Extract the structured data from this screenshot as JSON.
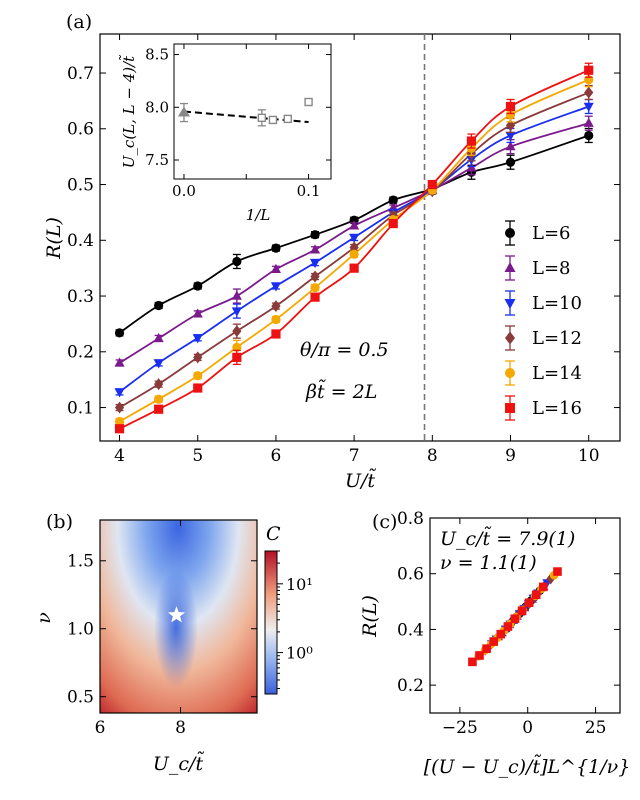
{
  "chart_data": [
    {
      "id": "a",
      "panel_label": "(a)",
      "type": "line",
      "xlabel": "U/t̃",
      "ylabel": "R(L)",
      "xlim": [
        3.75,
        10.4
      ],
      "ylim": [
        0.04,
        0.77
      ],
      "xticks": [
        4,
        5,
        6,
        7,
        8,
        9,
        10
      ],
      "yticks": [
        0.1,
        0.2,
        0.3,
        0.4,
        0.5,
        0.6,
        0.7
      ],
      "critical_line_x": 7.9,
      "annotations": [
        "θ/π = 0.5",
        "βt̃ = 2L"
      ],
      "series": [
        {
          "name": "L=6",
          "color": "#000000",
          "marker": "circle",
          "x": [
            4,
            4.5,
            5,
            5.5,
            6,
            6.5,
            7,
            7.5,
            8,
            8.5,
            9,
            10
          ],
          "y": [
            0.234,
            0.283,
            0.318,
            0.362,
            0.386,
            0.41,
            0.436,
            0.472,
            0.492,
            0.522,
            0.54,
            0.588
          ]
        },
        {
          "name": "L=8",
          "color": "#7b1a8c",
          "marker": "triangle-up",
          "x": [
            4,
            4.5,
            5,
            5.5,
            6,
            6.5,
            7,
            7.5,
            8,
            8.5,
            9,
            10
          ],
          "y": [
            0.18,
            0.224,
            0.268,
            0.3,
            0.348,
            0.383,
            0.426,
            0.458,
            0.49,
            0.53,
            0.568,
            0.61
          ]
        },
        {
          "name": "L=10",
          "color": "#1a2ef0",
          "marker": "triangle-down",
          "x": [
            4,
            4.5,
            5,
            5.5,
            6,
            6.5,
            7,
            7.5,
            8,
            8.5,
            9,
            10
          ],
          "y": [
            0.128,
            0.18,
            0.225,
            0.273,
            0.318,
            0.36,
            0.405,
            0.45,
            0.49,
            0.545,
            0.588,
            0.64
          ]
        },
        {
          "name": "L=12",
          "color": "#8b3a3a",
          "marker": "diamond",
          "x": [
            4,
            4.5,
            5,
            5.5,
            6,
            6.5,
            7,
            7.5,
            8,
            8.5,
            9,
            10
          ],
          "y": [
            0.1,
            0.142,
            0.19,
            0.237,
            0.282,
            0.335,
            0.387,
            0.445,
            0.488,
            0.555,
            0.606,
            0.665
          ]
        },
        {
          "name": "L=14",
          "color": "#f5a800",
          "marker": "circle",
          "x": [
            4,
            4.5,
            5,
            5.5,
            6,
            6.5,
            7,
            7.5,
            8,
            8.5,
            9,
            10
          ],
          "y": [
            0.075,
            0.115,
            0.157,
            0.208,
            0.258,
            0.315,
            0.375,
            0.437,
            0.49,
            0.565,
            0.625,
            0.688
          ]
        },
        {
          "name": "L=16",
          "color": "#ee1111",
          "marker": "square",
          "x": [
            4,
            4.5,
            5,
            5.5,
            6,
            6.5,
            7,
            7.5,
            8,
            8.5,
            9,
            10
          ],
          "y": [
            0.062,
            0.097,
            0.135,
            0.19,
            0.232,
            0.298,
            0.35,
            0.43,
            0.5,
            0.578,
            0.64,
            0.705
          ]
        }
      ]
    },
    {
      "id": "a_inset",
      "type": "scatter",
      "xlabel": "1/L",
      "ylabel": "U_c(L, L − 4)/t̃",
      "xlim": [
        -0.008,
        0.118
      ],
      "ylim": [
        7.32,
        8.6
      ],
      "xticks": [
        0.0,
        0.05,
        0.1
      ],
      "xtick_labels": [
        "0.0",
        "",
        "0.1"
      ],
      "yticks": [
        7.5,
        8.0,
        8.5
      ],
      "points_x": [
        0.0625,
        0.0714,
        0.0833,
        0.1
      ],
      "points_y": [
        7.9,
        7.88,
        7.89,
        8.05
      ],
      "extrapolated": {
        "x": 0.0,
        "y": 7.95
      },
      "fit_line": {
        "x": [
          0.0,
          0.1
        ],
        "y": [
          7.96,
          7.86
        ]
      }
    },
    {
      "id": "b",
      "panel_label": "(b)",
      "type": "heatmap",
      "xlabel": "U_c/t̃",
      "ylabel": "ν",
      "xlim": [
        6,
        9.9
      ],
      "ylim": [
        0.38,
        1.8
      ],
      "xticks": [
        6,
        8
      ],
      "yticks": [
        0.5,
        1.0,
        1.5
      ],
      "ytick_labels": [
        "0.5",
        "1.0",
        "1.5"
      ],
      "colorbar_label": "C",
      "colorbar_range": [
        0.25,
        30
      ],
      "colorbar_ticks": [
        "10⁰",
        "10¹"
      ],
      "best_fit": {
        "x": 7.9,
        "y": 1.1
      }
    },
    {
      "id": "c",
      "panel_label": "(c)",
      "type": "scatter",
      "xlabel": "[(U − U_c)/t̃]L^{1/ν}",
      "ylabel": "R(L)",
      "xlim": [
        -36,
        34
      ],
      "ylim": [
        0.1,
        0.8
      ],
      "xticks": [
        -25,
        0,
        25
      ],
      "xtick_labels": [
        "−25",
        "0",
        "25"
      ],
      "yticks": [
        0.2,
        0.4,
        0.6,
        0.8
      ],
      "ytick_labels": [
        "0.2",
        "0.4",
        "0.6",
        "0.8"
      ],
      "annotations": [
        "U_c/t̃ = 7.9(1)",
        "ν = 1.1(1)"
      ]
    }
  ],
  "legend_labels": [
    "L=6",
    "L=8",
    "L=10",
    "L=12",
    "L=14",
    "L=16"
  ]
}
